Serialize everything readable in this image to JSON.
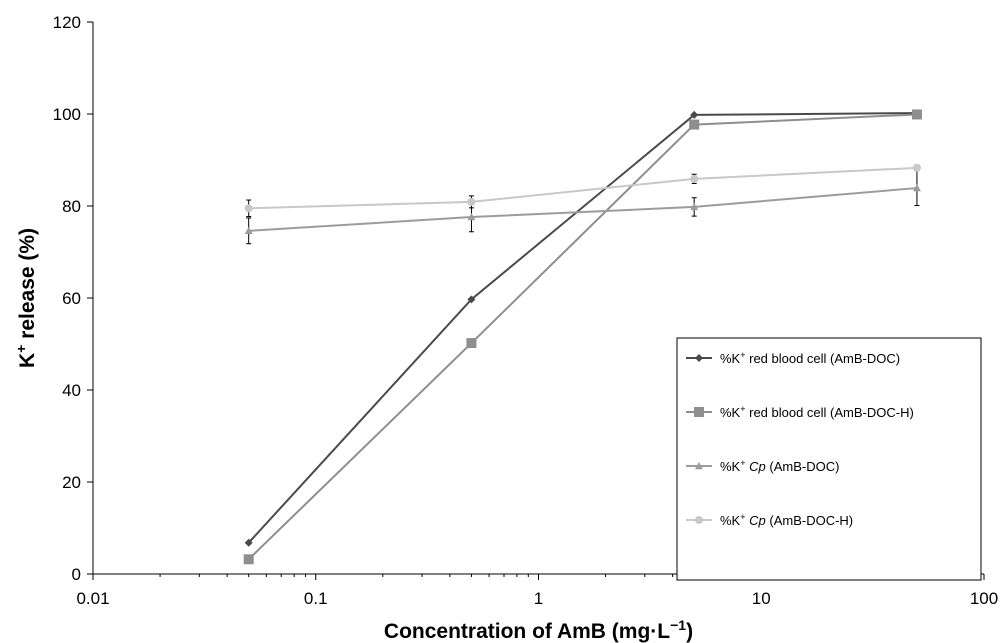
{
  "chart_data": {
    "type": "line",
    "title": "",
    "xlabel": {
      "pre": "Concentration of AmB (mg·L",
      "sup": "−1",
      "post": ")"
    },
    "ylabel": {
      "pre": "K",
      "sup": "+",
      "post": " release (%)"
    },
    "x_scale": "log",
    "xlim": [
      0.01,
      100
    ],
    "ylim": [
      0,
      120
    ],
    "x_ticks": [
      0.01,
      0.1,
      1,
      10,
      100
    ],
    "x_tick_labels": [
      "0.01",
      "0.1",
      "1",
      "10",
      "100"
    ],
    "y_ticks": [
      0,
      20,
      40,
      60,
      80,
      100,
      120
    ],
    "y_tick_labels": [
      "0",
      "20",
      "40",
      "60",
      "80",
      "100",
      "120"
    ],
    "grid": false,
    "legend_position": "right",
    "x": [
      0.05,
      0.5,
      5,
      50
    ],
    "series": [
      {
        "name": {
          "pre": "%K",
          "sup": "+",
          "mid": " red blood cell (AmB-DOC)",
          "ital": "",
          "post": ""
        },
        "color": "#4a4a4a",
        "marker": "diamond",
        "values": [
          6.8,
          59.7,
          99.8,
          100.2
        ]
      },
      {
        "name": {
          "pre": "%K",
          "sup": "+",
          "mid": " red blood cell (AmB-DOC-H)",
          "ital": "",
          "post": ""
        },
        "color": "#8e8e8e",
        "marker": "square",
        "values": [
          3.2,
          50.2,
          97.7,
          99.9
        ]
      },
      {
        "name": {
          "pre": "%K",
          "sup": "+",
          "mid": " ",
          "ital": "Cp",
          "post": " (AmB-DOC)"
        },
        "color": "#9c9c9c",
        "marker": "triangle",
        "values": [
          74.6,
          77.6,
          79.8,
          83.9
        ],
        "errors": [
          2.8,
          3.2,
          2.0,
          3.8
        ]
      },
      {
        "name": {
          "pre": "%K",
          "sup": "+",
          "mid": " ",
          "ital": "Cp",
          "post": " (AmB-DOC-H)"
        },
        "color": "#c8c8c8",
        "marker": "circle",
        "values": [
          79.5,
          80.9,
          85.9,
          88.3
        ],
        "errors": [
          1.8,
          1.3,
          1.0,
          0.6
        ]
      }
    ]
  }
}
